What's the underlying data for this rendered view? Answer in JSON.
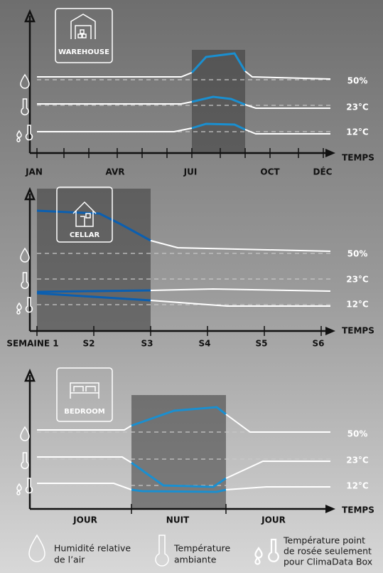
{
  "panels": [
    {
      "title": "WAREHOUSE",
      "levels": [
        "50%",
        "23°C",
        "12°C"
      ],
      "axis_label": "TEMPS",
      "x_labels": [
        "JAN",
        "AVR",
        "JUI",
        "OCT",
        "DÉC"
      ]
    },
    {
      "title": "CELLAR",
      "levels": [
        "50%",
        "23°C",
        "12°C"
      ],
      "axis_label": "TEMPS",
      "x_labels": [
        "SEMAINE 1",
        "S2",
        "S3",
        "S4",
        "S5",
        "S6"
      ]
    },
    {
      "title": "BEDROOM",
      "levels": [
        "50%",
        "23°C",
        "12°C"
      ],
      "axis_label": "TEMPS",
      "x_labels": [
        "JOUR",
        "NUIT",
        "JOUR"
      ]
    }
  ],
  "legend": [
    {
      "lines": [
        "Humidité relative",
        "de l’air"
      ]
    },
    {
      "lines": [
        "Température",
        "ambiante"
      ]
    },
    {
      "lines": [
        "Température point",
        "de rosée seulement",
        "pour ClimaData Box"
      ]
    }
  ]
}
